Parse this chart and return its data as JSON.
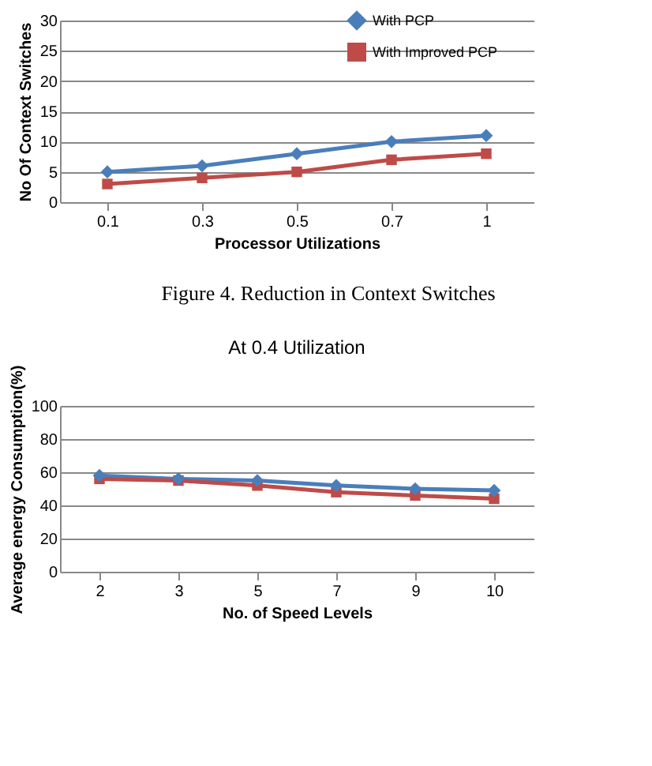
{
  "chart_data": [
    {
      "type": "line",
      "xlabel": "Processor Utilizations",
      "ylabel": "No Of Context Switches",
      "categories": [
        "0.1",
        "0.3",
        "0.5",
        "0.7",
        "1"
      ],
      "series": [
        {
          "name": "With PCP",
          "color": "#4a7ebb",
          "values": [
            5,
            6,
            8,
            10,
            11
          ],
          "marker": "diamond"
        },
        {
          "name": "With Improved PCP",
          "color": "#be4b48",
          "values": [
            3,
            4,
            5,
            7,
            8
          ],
          "marker": "square"
        }
      ],
      "ylim": [
        0,
        30
      ],
      "yticks": [
        0,
        5,
        10,
        15,
        20,
        25,
        30
      ],
      "grid": "y",
      "legend": "top right",
      "annotations": [
        "Figure 4.    Reduction in Context Switches"
      ]
    },
    {
      "type": "line",
      "title": "At 0.4 Utilization",
      "xlabel": "No. of Speed  Levels",
      "ylabel": "Average energy Consumption(%)",
      "categories": [
        "2",
        "3",
        "5",
        "7",
        "9",
        "10"
      ],
      "series": [
        {
          "name": "With PCP",
          "color": "#4a7ebb",
          "values": [
            58,
            56,
            55,
            52,
            50,
            49
          ],
          "marker": "diamond"
        },
        {
          "name": "With Improved PCP",
          "color": "#be4b48",
          "values": [
            56,
            55,
            52,
            48,
            46,
            44
          ],
          "marker": "square"
        }
      ],
      "ylim": [
        0,
        100
      ],
      "yticks": [
        0,
        20,
        40,
        60,
        80,
        100
      ],
      "grid": "y",
      "legend": "top right"
    }
  ]
}
